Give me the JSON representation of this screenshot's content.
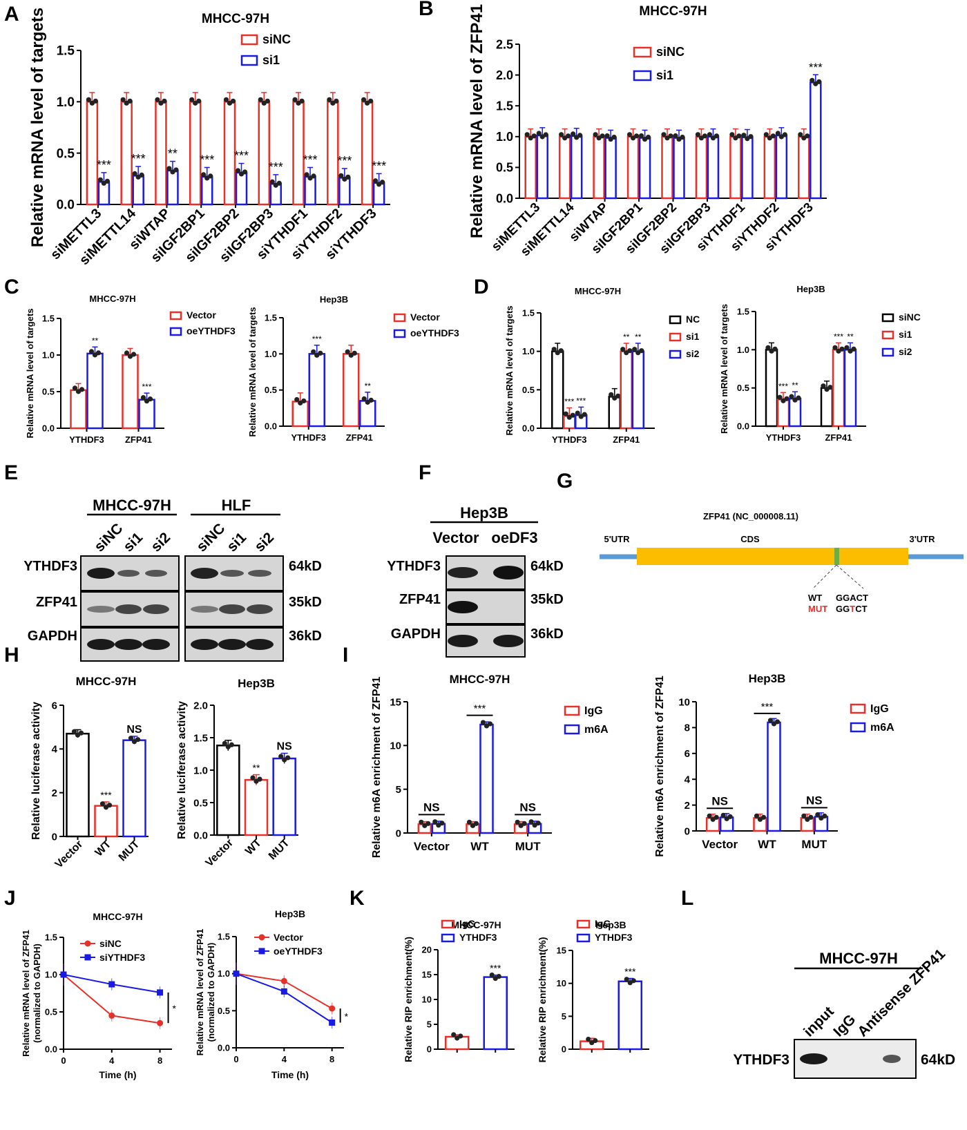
{
  "colors": {
    "red": "#e8302a",
    "blue": "#1a1ae6",
    "black": "#000000",
    "gold": "#fcbd00",
    "utr": "#5b9bd5",
    "green": "#70ad47"
  },
  "panel_letters": [
    "A",
    "B",
    "C",
    "D",
    "E",
    "F",
    "G",
    "H",
    "I",
    "J",
    "K",
    "L"
  ],
  "chart_data": [
    {
      "id": "A",
      "type": "bar",
      "title": "MHCC-97H",
      "ylabel": "Relative mRNA level of targets",
      "ylim": [
        0,
        1.5
      ],
      "yticks": [
        "0.0",
        "0.5",
        "1.0",
        "1.5"
      ],
      "categories": [
        "siMETTL3",
        "siMETTL14",
        "siWTAP",
        "siIGF2BP1",
        "siIGF2BP2",
        "siIGF2BP3",
        "siYTHDF1",
        "siYTHDF2",
        "siYTHDF3"
      ],
      "series": [
        {
          "name": "siNC",
          "color": "red",
          "values": [
            1,
            1,
            1,
            1,
            1,
            1,
            1,
            1,
            1
          ]
        },
        {
          "name": "si1",
          "color": "blue",
          "values": [
            0.22,
            0.28,
            0.33,
            0.27,
            0.31,
            0.2,
            0.27,
            0.26,
            0.21
          ]
        }
      ],
      "sig": [
        "***",
        "***",
        "**",
        "***",
        "***",
        "***",
        "***",
        "***",
        "***"
      ]
    },
    {
      "id": "B",
      "type": "bar",
      "title": "MHCC-97H",
      "ylabel": "Relative mRNA level of ZFP41",
      "ylim": [
        0,
        2.5
      ],
      "yticks": [
        "0.0",
        "0.5",
        "1.0",
        "1.5",
        "2.0",
        "2.5"
      ],
      "categories": [
        "siMETTL3",
        "siMETTL14",
        "siWTAP",
        "siIGF2BP1",
        "siIGF2BP2",
        "siIGF2BP3",
        "siYTHDF1",
        "siYTHDF2",
        "siYTHDF3"
      ],
      "series": [
        {
          "name": "siNC",
          "color": "red",
          "values": [
            1,
            1,
            1,
            1,
            1,
            1,
            1,
            1,
            1
          ]
        },
        {
          "name": "si1",
          "color": "blue",
          "values": [
            1.02,
            1.01,
            0.98,
            0.98,
            0.98,
            1.0,
            0.99,
            1.02,
            1.88
          ]
        }
      ],
      "sig": [
        "",
        "",
        "",
        "",
        "",
        "",
        "",
        "",
        "***"
      ]
    },
    {
      "id": "C1",
      "type": "bar",
      "title": "MHCC-97H",
      "ylabel": "Relative mRNA level of targets",
      "ylim": [
        0,
        1.5
      ],
      "yticks": [
        "0.0",
        "0.5",
        "1.0",
        "1.5"
      ],
      "categories": [
        "YTHDF3",
        "ZFP41"
      ],
      "series": [
        {
          "name": "Vector",
          "color": "red",
          "values": [
            0.52,
            1.0
          ]
        },
        {
          "name": "oeYTHDF3",
          "color": "blue",
          "values": [
            1.02,
            0.39
          ]
        }
      ],
      "sig": [
        "**",
        "***"
      ]
    },
    {
      "id": "C2",
      "type": "bar",
      "title": "Hep3B",
      "ylabel": "Relative mRNA level of targets",
      "ylim": [
        0,
        1.5
      ],
      "yticks": [
        "0.0",
        "0.5",
        "1.0",
        "1.5"
      ],
      "categories": [
        "YTHDF3",
        "ZFP41"
      ],
      "series": [
        {
          "name": "Vector",
          "color": "red",
          "values": [
            0.34,
            1.0
          ]
        },
        {
          "name": "oeYTHDF3",
          "color": "blue",
          "values": [
            1.0,
            0.35
          ]
        }
      ],
      "sig": [
        "***",
        "**"
      ]
    },
    {
      "id": "D1",
      "type": "bar",
      "title": "MHCC-97H",
      "ylabel": "Relative mRNA level of targets",
      "ylim": [
        0,
        1.5
      ],
      "yticks": [
        "0.0",
        "0.5",
        "1.0",
        "1.5"
      ],
      "categories": [
        "YTHDF3",
        "ZFP41"
      ],
      "series": [
        {
          "name": "NC",
          "color": "black",
          "values": [
            1.0,
            0.41
          ]
        },
        {
          "name": "si1",
          "color": "red",
          "values": [
            0.16,
            1.0
          ]
        },
        {
          "name": "si2",
          "color": "blue",
          "values": [
            0.17,
            1.0
          ]
        }
      ],
      "sig": [
        "",
        "***",
        "***",
        "",
        "**",
        "**"
      ]
    },
    {
      "id": "D2",
      "type": "bar",
      "title": "Hep3B",
      "ylabel": "Relative mRNA level of targets",
      "ylim": [
        0,
        1.5
      ],
      "yticks": [
        "0.0",
        "0.5",
        "1.0",
        "1.5"
      ],
      "categories": [
        "YTHDF3",
        "ZFP41"
      ],
      "series": [
        {
          "name": "siNC",
          "color": "black",
          "values": [
            1.0,
            0.5
          ]
        },
        {
          "name": "si1",
          "color": "red",
          "values": [
            0.35,
            1.0
          ]
        },
        {
          "name": "si2",
          "color": "blue",
          "values": [
            0.36,
            1.0
          ]
        }
      ],
      "sig": [
        "",
        "***",
        "**",
        "",
        "***",
        "**"
      ]
    },
    {
      "id": "H1",
      "type": "bar",
      "title": "MHCC-97H",
      "ylabel": "Relative luciferase activity",
      "ylim": [
        0,
        6
      ],
      "yticks": [
        "0",
        "2",
        "4",
        "6"
      ],
      "categories": [
        "Vector",
        "WT",
        "MUT"
      ],
      "colors": [
        "black",
        "red",
        "blue"
      ],
      "values": [
        4.7,
        1.4,
        4.4
      ],
      "sig": [
        "",
        "***",
        "NS"
      ]
    },
    {
      "id": "H2",
      "type": "bar",
      "title": "Hep3B",
      "ylabel": "Relative luciferase activity",
      "ylim": [
        0,
        2
      ],
      "yticks": [
        "0.0",
        "0.5",
        "1.0",
        "1.5",
        "2.0"
      ],
      "categories": [
        "Vector",
        "WT",
        "MUT"
      ],
      "colors": [
        "black",
        "red",
        "blue"
      ],
      "values": [
        1.38,
        0.85,
        1.18
      ],
      "sig": [
        "",
        "**",
        "NS"
      ]
    },
    {
      "id": "I1",
      "type": "bar",
      "title": "MHCC-97H",
      "ylabel": "Relative m6A enrichment of ZFP41",
      "ylim": [
        0,
        15
      ],
      "yticks": [
        "0",
        "5",
        "10",
        "15"
      ],
      "categories": [
        "Vector",
        "WT",
        "MUT"
      ],
      "series": [
        {
          "name": "IgG",
          "color": "red",
          "values": [
            1.0,
            1.0,
            1.0
          ]
        },
        {
          "name": "m6A",
          "color": "blue",
          "values": [
            1.05,
            12.4,
            1.05
          ]
        }
      ],
      "sig": [
        "NS",
        "***",
        "NS"
      ]
    },
    {
      "id": "I2",
      "type": "bar",
      "title": "Hep3B",
      "ylabel": "Relative m6A enrichment of ZFP41",
      "ylim": [
        0,
        10
      ],
      "yticks": [
        "0",
        "2",
        "4",
        "6",
        "8",
        "10"
      ],
      "categories": [
        "Vector",
        "WT",
        "MUT"
      ],
      "series": [
        {
          "name": "IgG",
          "color": "red",
          "values": [
            1.0,
            1.0,
            1.0
          ]
        },
        {
          "name": "m6A",
          "color": "blue",
          "values": [
            1.05,
            8.4,
            1.1
          ]
        }
      ],
      "sig": [
        "NS",
        "***",
        "NS"
      ]
    },
    {
      "id": "J1",
      "type": "line",
      "title": "MHCC-97H",
      "ylabel": "Relative mRNA level of ZFP41 (normalized to GAPDH)",
      "xlabel": "Time (h)",
      "ylim": [
        0,
        1.5
      ],
      "xlim": [
        0,
        9
      ],
      "yticks": [
        "0.0",
        "0.5",
        "1.0",
        "1.5"
      ],
      "x": [
        0,
        4,
        8
      ],
      "xticks": [
        "0",
        "4",
        "8"
      ],
      "series": [
        {
          "name": "siNC",
          "color": "red",
          "values": [
            1.0,
            0.45,
            0.35
          ]
        },
        {
          "name": "siYTHDF3",
          "color": "blue",
          "values": [
            1.0,
            0.87,
            0.76
          ]
        }
      ],
      "sig": "*"
    },
    {
      "id": "J2",
      "type": "line",
      "title": "Hep3B",
      "ylabel": "Relative mRNA level of ZFP41 (normalized to GAPDH)",
      "xlabel": "Time (h)",
      "ylim": [
        0,
        1.5
      ],
      "xlim": [
        0,
        9
      ],
      "yticks": [
        "0.0",
        "0.5",
        "1.0",
        "1.5"
      ],
      "x": [
        0,
        4,
        8
      ],
      "xticks": [
        "0",
        "4",
        "8"
      ],
      "series": [
        {
          "name": "Vector",
          "color": "red",
          "values": [
            1.0,
            0.9,
            0.53
          ]
        },
        {
          "name": "oeYTHDF3",
          "color": "blue",
          "values": [
            1.0,
            0.76,
            0.34
          ]
        }
      ],
      "sig": "*"
    },
    {
      "id": "K1",
      "type": "bar",
      "title": "MHCC-97H",
      "ylabel": "Relative RIP enrichment(%)",
      "ylim": [
        0,
        20
      ],
      "yticks": [
        "0",
        "5",
        "10",
        "15",
        "20"
      ],
      "categories": [
        "IgG",
        "YTHDF3"
      ],
      "colors": [
        "red",
        "blue"
      ],
      "values": [
        2.5,
        14.5
      ],
      "sig": [
        "",
        "***"
      ]
    },
    {
      "id": "K2",
      "type": "bar",
      "title": "Hep3B",
      "ylabel": "Relative RIP enrichment(%)",
      "ylim": [
        0,
        15
      ],
      "yticks": [
        "0",
        "5",
        "10",
        "15"
      ],
      "categories": [
        "IgG",
        "YTHDF3"
      ],
      "colors": [
        "red",
        "blue"
      ],
      "values": [
        1.2,
        10.3
      ],
      "sig": [
        "",
        "***"
      ]
    }
  ],
  "blots": {
    "E": {
      "groups": [
        "MHCC-97H",
        "HLF"
      ],
      "lanes": [
        "siNC",
        "si1",
        "si2"
      ],
      "rows": [
        "YTHDF3",
        "ZFP41",
        "GAPDH"
      ],
      "sizes": [
        "64kD",
        "35kD",
        "36kD"
      ]
    },
    "F": {
      "group": "Hep3B",
      "lanes": [
        "Vector",
        "oeDF3"
      ],
      "rows": [
        "YTHDF3",
        "ZFP41",
        "GAPDH"
      ],
      "sizes": [
        "64kD",
        "35kD",
        "36kD"
      ]
    },
    "L": {
      "group": "MHCC-97H",
      "lanes": [
        "input",
        "IgG",
        "Antisense ZFP41"
      ],
      "row": "YTHDF3",
      "size": "64kD"
    }
  },
  "diagram_G": {
    "title": "ZFP41 (NC_000008.11)",
    "utr5": "5'UTR",
    "cds": "CDS",
    "utr3": "3'UTR",
    "wt_label": "WT",
    "wt_seq": "GGACT",
    "mut_label": "MUT",
    "mut_seq_a": "GG",
    "mut_seq_b": "T",
    "mut_seq_c": "CT"
  }
}
